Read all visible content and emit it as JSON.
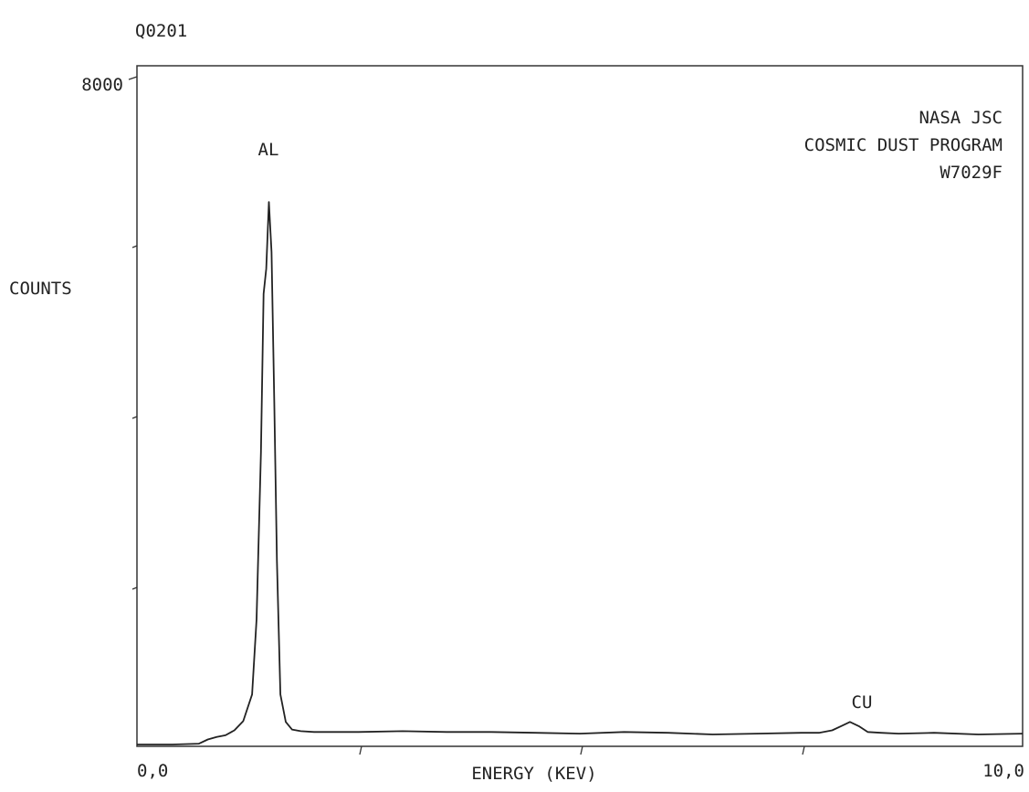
{
  "header": {
    "id_label": "Q0201"
  },
  "chart_data": {
    "type": "line",
    "ylabel": "COUNTS",
    "xlabel": "ENERGY (KEV)",
    "xlim": [
      0.0,
      10.0
    ],
    "ylim": [
      0,
      8000
    ],
    "x_tick_labels": {
      "min": "0,0",
      "max": "10,0"
    },
    "y_tick_labels": {
      "max": "8000"
    },
    "annotation_lines": [
      "NASA JSC",
      "COSMIC DUST PROGRAM",
      "W7029F"
    ],
    "peaks": [
      {
        "label": "AL",
        "x": 1.49,
        "y": 6500
      },
      {
        "label": "CU",
        "x": 8.05,
        "y": 270
      }
    ],
    "series": [
      {
        "x": [
          0.0,
          0.4,
          0.7,
          0.8,
          0.9,
          1.0,
          1.1,
          1.2,
          1.3,
          1.35,
          1.4,
          1.43,
          1.46,
          1.49,
          1.52,
          1.55,
          1.58,
          1.62,
          1.68,
          1.75,
          1.85,
          2.0,
          2.5,
          3.0,
          3.5,
          4.0,
          4.5,
          5.0,
          5.5,
          6.0,
          6.5,
          7.0,
          7.5,
          7.7,
          7.85,
          7.95,
          8.05,
          8.15,
          8.25,
          8.4,
          8.6,
          9.0,
          9.5,
          10.0
        ],
        "y": [
          0,
          0,
          10,
          60,
          90,
          110,
          170,
          280,
          600,
          1500,
          3500,
          5400,
          5700,
          6500,
          5900,
          4100,
          2200,
          600,
          270,
          180,
          160,
          150,
          150,
          160,
          150,
          150,
          140,
          130,
          150,
          140,
          120,
          130,
          140,
          140,
          170,
          220,
          270,
          220,
          150,
          140,
          130,
          140,
          120,
          130
        ]
      }
    ]
  }
}
